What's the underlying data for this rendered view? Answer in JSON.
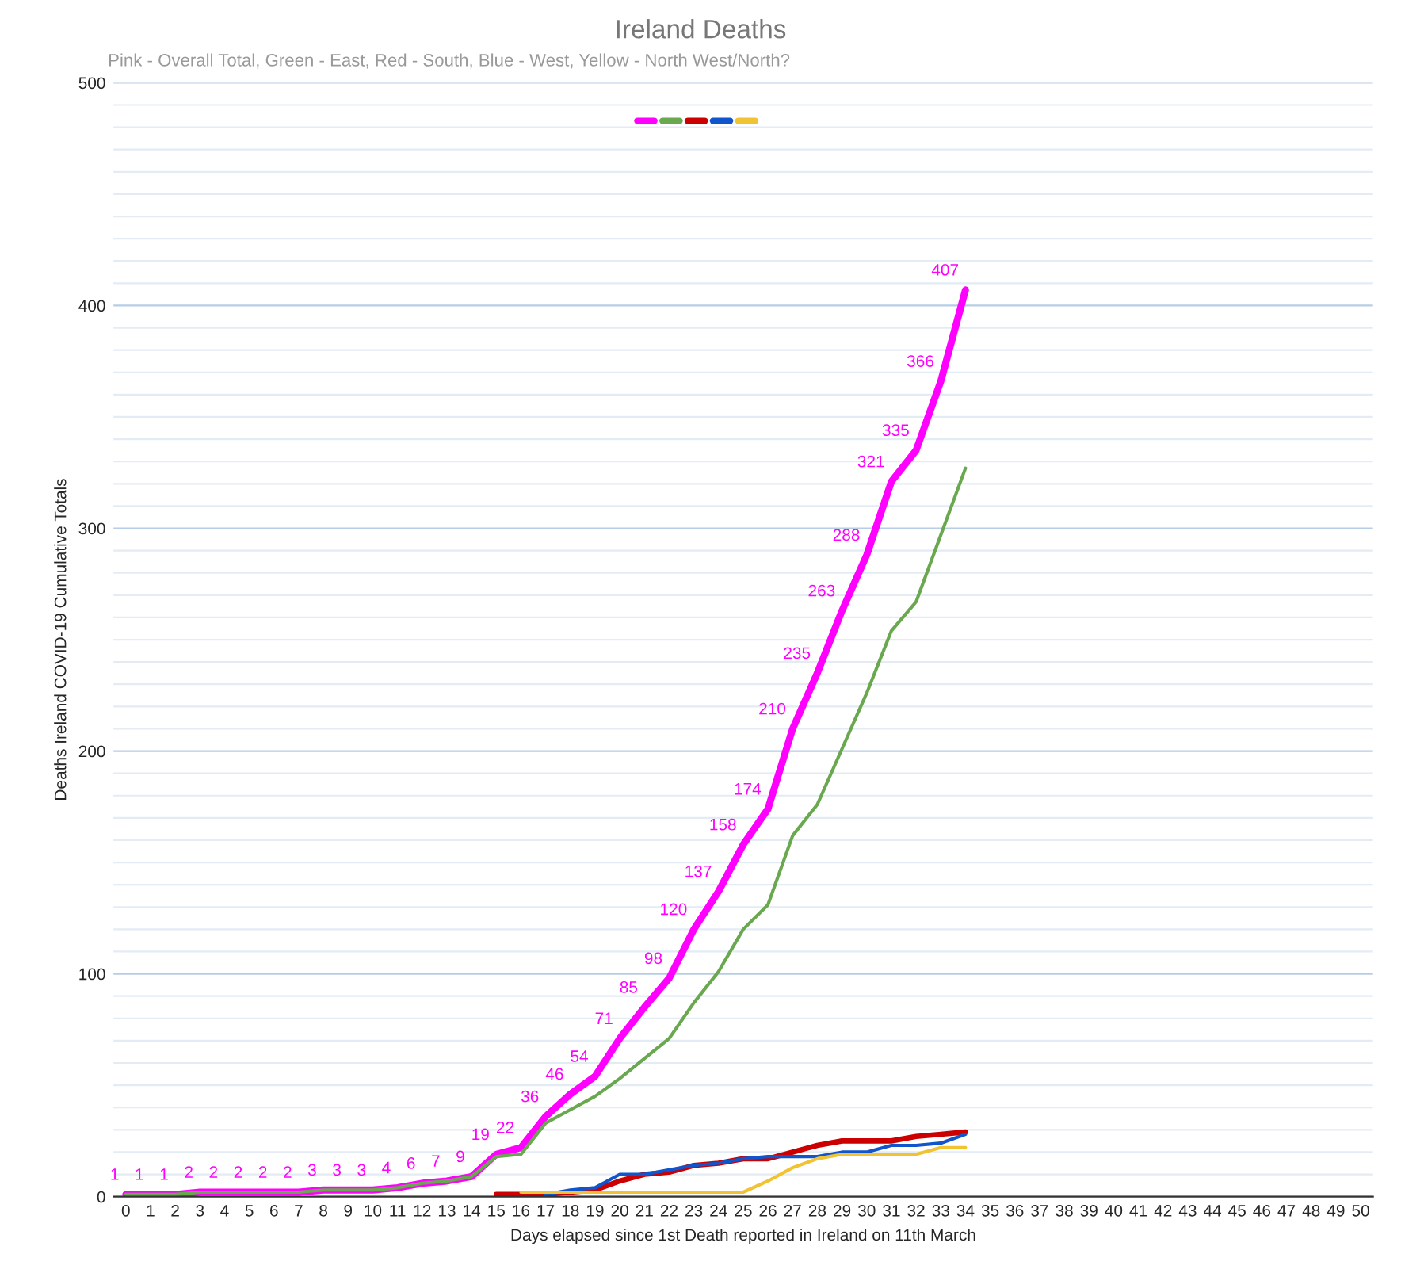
{
  "chart_data": {
    "type": "line",
    "title": "Ireland Deaths",
    "subtitle": "Pink - Overall Total, Green - East, Red - South, Blue - West, Yellow - North West/North?",
    "xlabel": "Days elapsed since 1st Death reported in Ireland on 11th March",
    "ylabel": "Deaths Ireland COVID-19 Cumulative Totals",
    "categories": [
      "0",
      "1",
      "2",
      "3",
      "4",
      "5",
      "6",
      "7",
      "8",
      "9",
      "10",
      "11",
      "12",
      "13",
      "14",
      "15",
      "16",
      "17",
      "18",
      "19",
      "20",
      "21",
      "22",
      "23",
      "24",
      "25",
      "26",
      "27",
      "28",
      "29",
      "30",
      "31",
      "32",
      "33",
      "34",
      "35",
      "36",
      "37",
      "38",
      "39",
      "40",
      "41",
      "42",
      "43",
      "44",
      "45",
      "46",
      "47",
      "48",
      "49",
      "50"
    ],
    "series": [
      {
        "color": "#ff00ff",
        "values": [
          1,
          1,
          1,
          2,
          2,
          2,
          2,
          2,
          3,
          3,
          3,
          4,
          6,
          7,
          9,
          19,
          22,
          36,
          46,
          54,
          71,
          85,
          98,
          120,
          137,
          158,
          174,
          210,
          235,
          263,
          288,
          321,
          335,
          366,
          407,
          null,
          null,
          null,
          null,
          null,
          null,
          null,
          null,
          null,
          null,
          null,
          null,
          null,
          null,
          null,
          null
        ],
        "value_labels": [
          "1",
          "1",
          "1",
          "2",
          "2",
          "2",
          "2",
          "2",
          "3",
          "3",
          "3",
          "4",
          "6",
          "7",
          "9",
          "19",
          "22",
          "36",
          "46",
          "54",
          "71",
          "85",
          "98",
          "120",
          "137",
          "158",
          "174",
          "210",
          "235",
          "263",
          "288",
          "321",
          "335",
          "366",
          "407",
          null,
          null,
          null,
          null,
          null,
          null,
          null,
          null,
          null,
          null,
          null,
          null,
          null,
          null,
          null,
          null
        ]
      },
      {
        "color": "#6aa84f",
        "values": [
          1,
          1,
          1,
          2,
          2,
          2,
          2,
          2,
          3,
          3,
          3,
          4,
          6,
          7,
          9,
          18,
          19,
          33,
          39,
          45,
          53,
          62,
          71,
          87,
          101,
          120,
          131,
          162,
          176,
          201,
          226,
          254,
          267,
          297,
          327,
          null,
          null,
          null,
          null,
          null,
          null,
          null,
          null,
          null,
          null,
          null,
          null,
          null,
          null,
          null,
          null
        ]
      },
      {
        "color": "#cc0000",
        "values": [
          null,
          null,
          null,
          null,
          null,
          null,
          null,
          null,
          null,
          null,
          null,
          null,
          null,
          null,
          null,
          1,
          1,
          1,
          2,
          3,
          7,
          10,
          11,
          14,
          15,
          17,
          17,
          20,
          23,
          25,
          25,
          25,
          27,
          28,
          29,
          null,
          null,
          null,
          null,
          null,
          null,
          null,
          null,
          null,
          null,
          null,
          null,
          null,
          null,
          null,
          null
        ]
      },
      {
        "color": "#1155cc",
        "values": [
          null,
          null,
          null,
          null,
          null,
          null,
          null,
          null,
          null,
          null,
          null,
          null,
          null,
          null,
          null,
          null,
          null,
          1,
          3,
          4,
          10,
          10,
          12,
          14,
          15,
          17,
          18,
          18,
          18,
          20,
          20,
          23,
          23,
          24,
          28,
          null,
          null,
          null,
          null,
          null,
          null,
          null,
          null,
          null,
          null,
          null,
          null,
          null,
          null,
          null,
          null
        ]
      },
      {
        "color": "#f1c232",
        "values": [
          null,
          null,
          null,
          null,
          null,
          null,
          null,
          null,
          null,
          null,
          null,
          null,
          null,
          null,
          null,
          null,
          2,
          2,
          2,
          2,
          2,
          2,
          2,
          2,
          2,
          2,
          7,
          13,
          17,
          19,
          19,
          19,
          19,
          22,
          22,
          null,
          null,
          null,
          null,
          null,
          null,
          null,
          null,
          null,
          null,
          null,
          null,
          null,
          null,
          null,
          null
        ]
      }
    ],
    "ylim": [
      0,
      500
    ],
    "yticks": [
      0,
      {
        "value": 10,
        "label": null
      },
      {
        "value": 20,
        "label": null
      },
      {
        "value": 30,
        "label": null
      },
      {
        "value": 40,
        "label": null
      },
      {
        "value": 50,
        "label": null
      },
      {
        "value": 60,
        "label": null
      },
      {
        "value": 70,
        "label": null
      },
      {
        "value": 80,
        "label": null
      },
      {
        "value": 90,
        "label": null
      },
      100,
      {
        "value": 110,
        "label": null
      },
      {
        "value": 120,
        "label": null
      },
      {
        "value": 130,
        "label": null
      },
      {
        "value": 140,
        "label": null
      },
      {
        "value": 150,
        "label": null
      },
      {
        "value": 160,
        "label": null
      },
      {
        "value": 170,
        "label": null
      },
      {
        "value": 180,
        "label": null
      },
      {
        "value": 190,
        "label": null
      },
      200,
      {
        "value": 210,
        "label": null
      },
      {
        "value": 220,
        "label": null
      },
      {
        "value": 230,
        "label": null
      },
      {
        "value": 240,
        "label": null
      },
      {
        "value": 250,
        "label": null
      },
      {
        "value": 260,
        "label": null
      },
      {
        "value": 270,
        "label": null
      },
      {
        "value": 280,
        "label": null
      },
      {
        "value": 290,
        "label": null
      },
      300,
      {
        "value": 310,
        "label": null
      },
      {
        "value": 320,
        "label": null
      },
      {
        "value": 330,
        "label": null
      },
      {
        "value": 340,
        "label": null
      },
      {
        "value": 350,
        "label": null
      },
      {
        "value": 360,
        "label": null
      },
      {
        "value": 370,
        "label": null
      },
      {
        "value": 380,
        "label": null
      },
      {
        "value": 390,
        "label": null
      },
      400,
      {
        "value": 410,
        "label": null
      },
      {
        "value": 420,
        "label": null
      },
      {
        "value": 430,
        "label": null
      },
      {
        "value": 440,
        "label": null
      },
      {
        "value": 450,
        "label": null
      },
      {
        "value": 460,
        "label": null
      },
      {
        "value": 470,
        "label": null
      },
      {
        "value": 480,
        "label": null
      },
      {
        "value": 490,
        "label": null
      },
      500
    ],
    "grid": "y",
    "marker": "none",
    "line_style": "solid"
  }
}
